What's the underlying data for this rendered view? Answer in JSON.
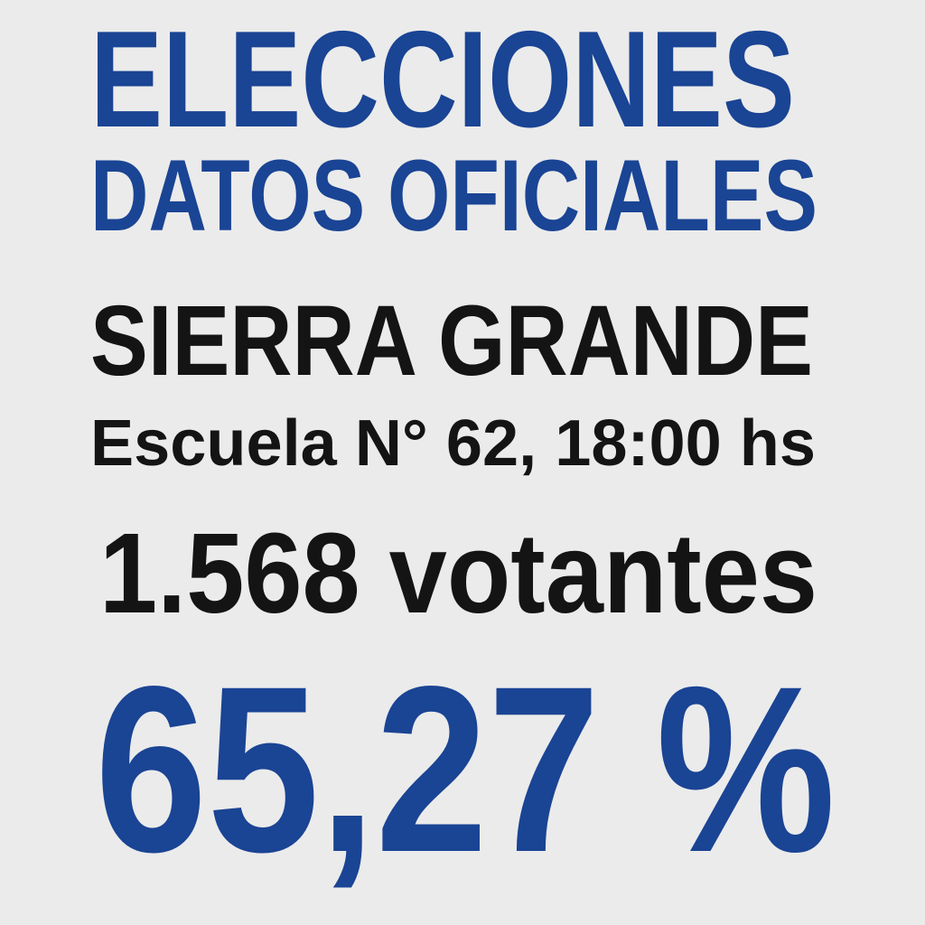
{
  "header": {
    "title": "ELECCIONES",
    "subtitle": "DATOS OFICIALES"
  },
  "location": {
    "name": "SIERRA GRANDE",
    "detail": "Escuela N° 62, 18:00 hs"
  },
  "voters": "1.568 votantes",
  "turnout": "65,27 %"
}
